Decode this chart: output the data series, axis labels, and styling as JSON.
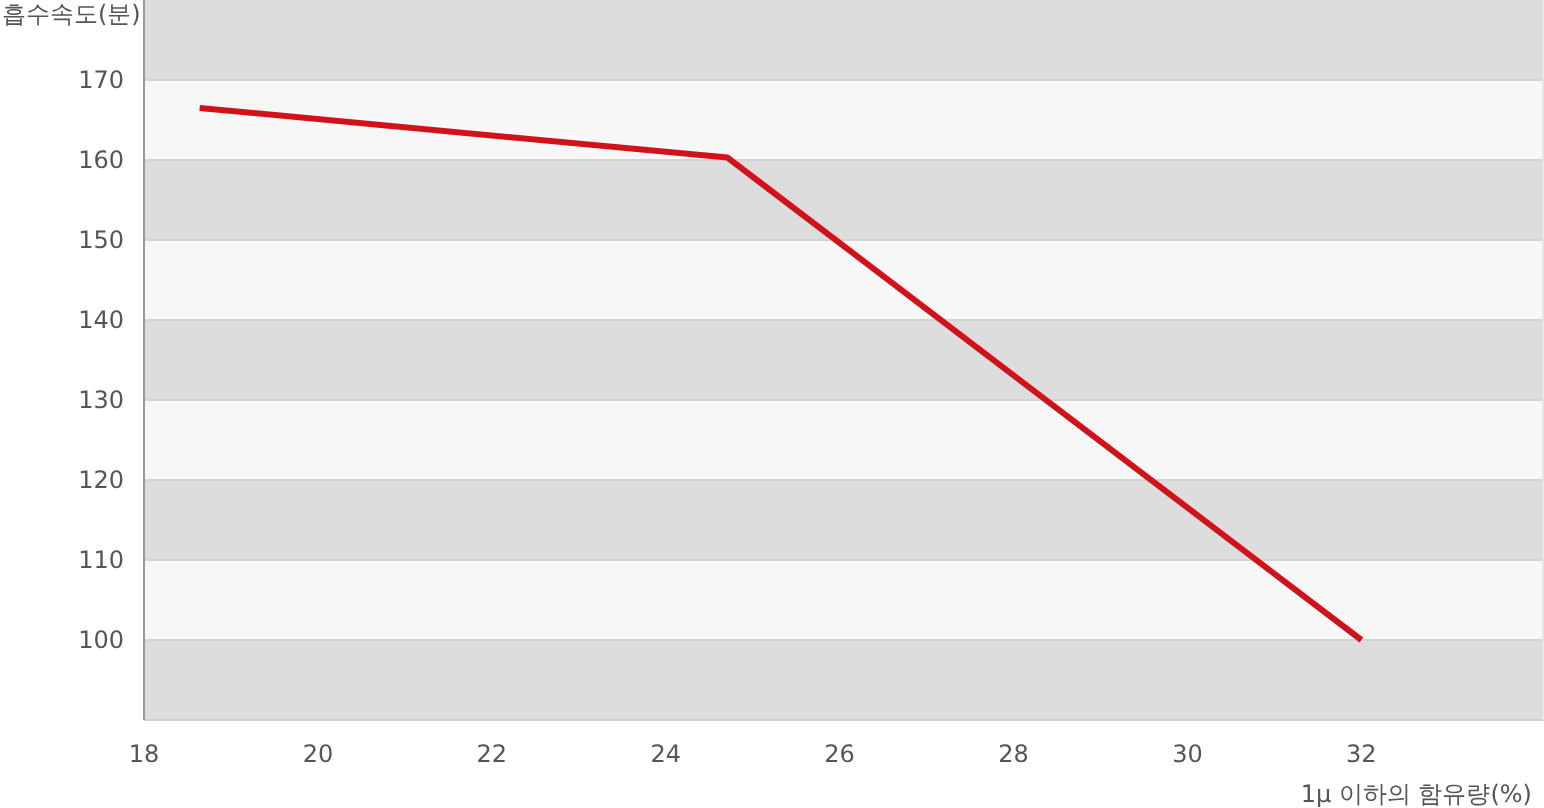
{
  "chart_data": {
    "type": "line",
    "xlabel": "1μ 이하의 함유량(%)",
    "ylabel": "흡수속도(분)",
    "x": [
      18.64,
      24.71,
      32
    ],
    "series": [
      {
        "color": "#d0121b",
        "values": [
          166.5,
          160.3,
          100
        ]
      }
    ],
    "xlim": [
      18,
      34.1
    ],
    "ylim": [
      90,
      180
    ],
    "xticks": [
      18,
      20,
      22,
      24,
      26,
      28,
      30,
      32
    ],
    "yticks": [
      100,
      110,
      120,
      130,
      140,
      150,
      160,
      170
    ],
    "grid": "y",
    "line_style": "solid"
  }
}
